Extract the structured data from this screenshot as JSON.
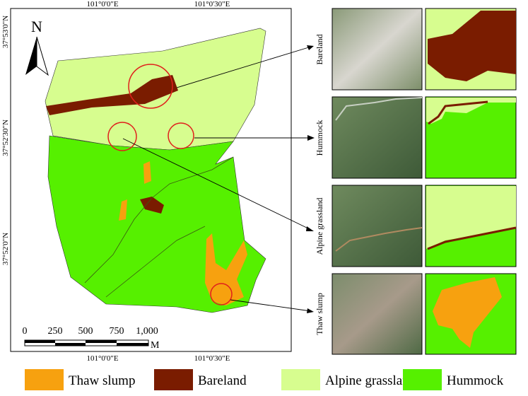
{
  "map": {
    "north": "N",
    "top_labels": [
      "101°0'0\"E",
      "101°0'30\"E"
    ],
    "bottom_labels": [
      "101°0'0\"E",
      "101°0'30\"E"
    ],
    "left_labels": [
      "37°53'0\"N",
      "37°52'30\"N",
      "37°52'0\"N"
    ],
    "scale": {
      "ticks": [
        "0",
        "250",
        "500",
        "750",
        "1,000"
      ],
      "unit": "M"
    }
  },
  "panels": [
    {
      "label": "Bareland"
    },
    {
      "label": "Hummock"
    },
    {
      "label": "Alpine grassland"
    },
    {
      "label": "Thaw slump"
    }
  ],
  "legend": [
    {
      "name": "Thaw slump",
      "color": "#f7a10f"
    },
    {
      "name": "Bareland",
      "color": "#7a1c00"
    },
    {
      "name": "Alpine grassland",
      "color": "#d7fd8f"
    },
    {
      "name": "Hummock",
      "color": "#56f000"
    }
  ]
}
